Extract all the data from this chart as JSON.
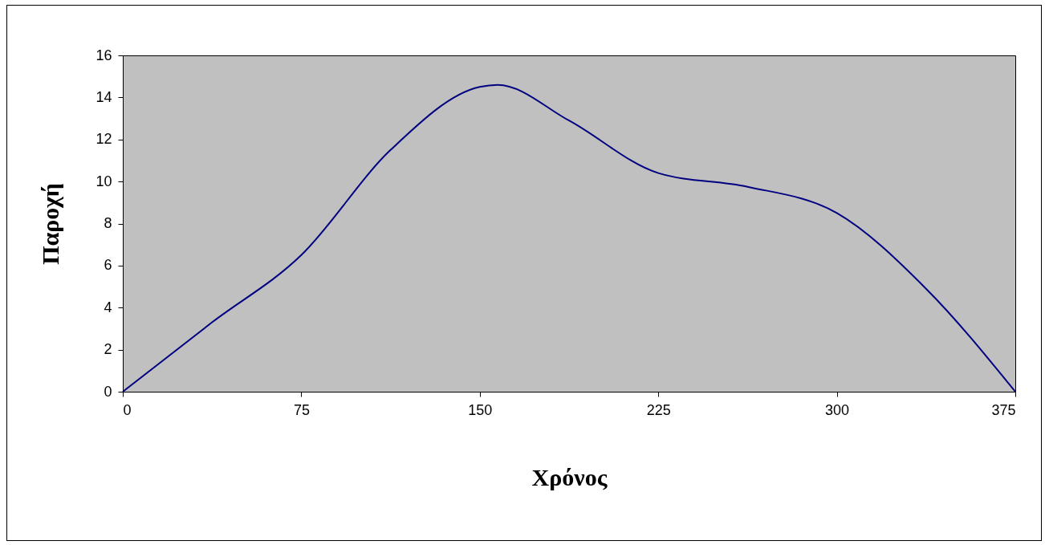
{
  "chart_data": {
    "type": "line",
    "xlabel": "Χρόνος",
    "ylabel": "Παροχή",
    "x": [
      0,
      37.5,
      75,
      112.5,
      150,
      157.5,
      187.5,
      225,
      262.5,
      300,
      337.5,
      375
    ],
    "series": [
      {
        "color": "#000080",
        "values": [
          0,
          3.3,
          6.5,
          11.5,
          14.5,
          14.6,
          12.9,
          10.4,
          9.75,
          8.5,
          4.9,
          0
        ]
      }
    ],
    "xlim": [
      0,
      375
    ],
    "xticks": [
      0,
      75,
      150,
      225,
      300,
      375
    ],
    "ylim": [
      0,
      16
    ],
    "yticks": [
      0,
      2,
      4,
      6,
      8,
      10,
      12,
      14,
      16
    ],
    "grid": false,
    "legend": false,
    "marker": "none",
    "line_style": "solid"
  }
}
